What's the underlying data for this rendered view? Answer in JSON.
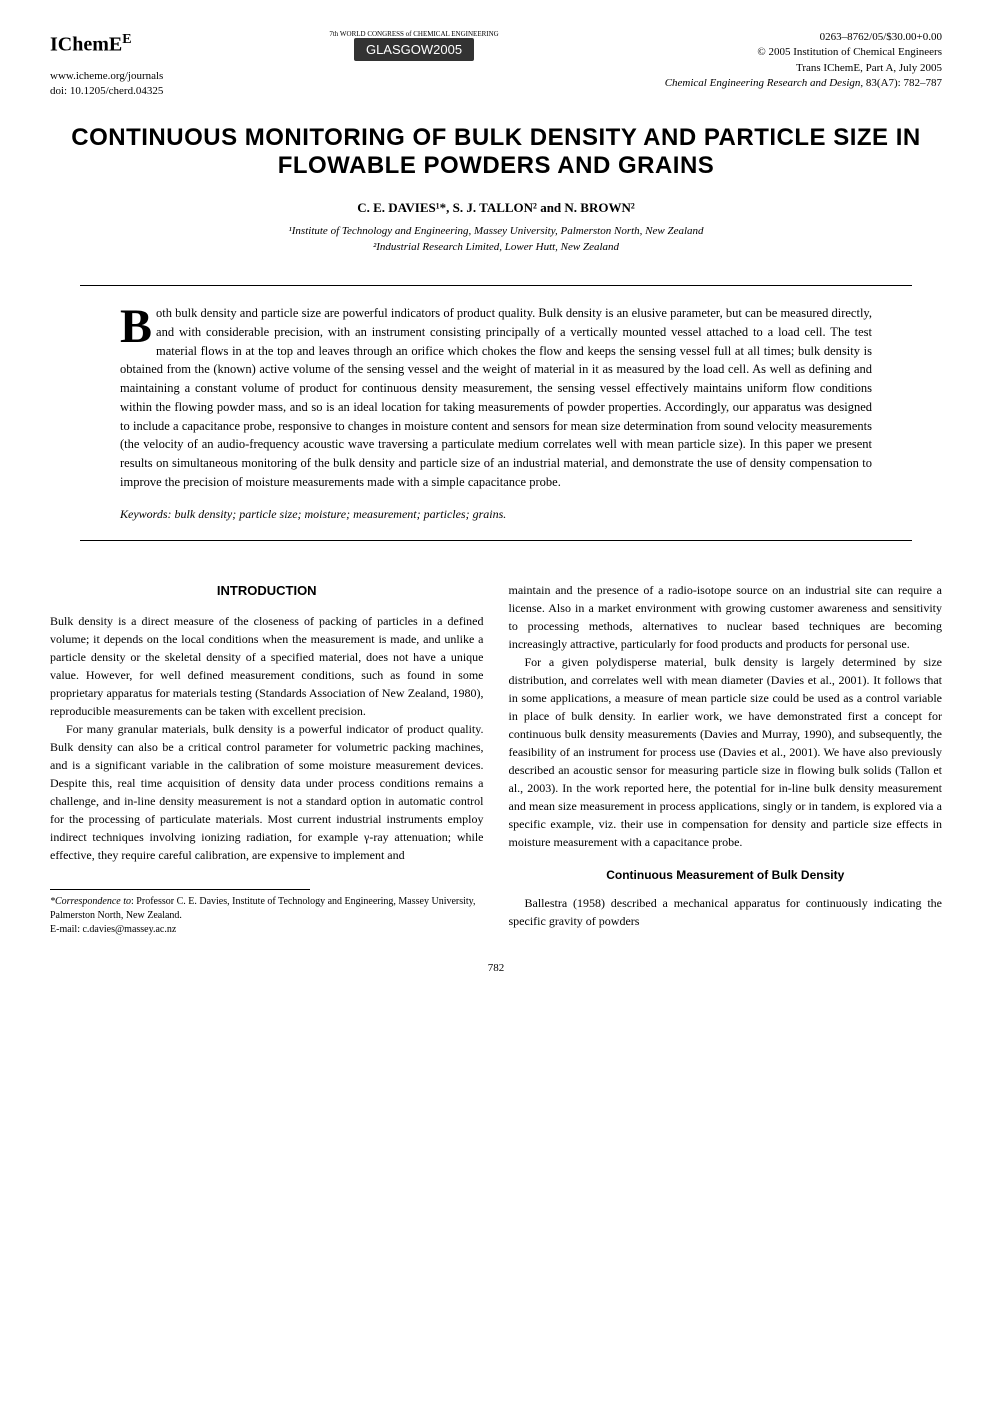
{
  "header": {
    "logo": "IChemE",
    "url": "www.icheme.org/journals",
    "doi": "doi: 10.1205/cherd.04325",
    "conference_logo_top": "7th WORLD CONGRESS of CHEMICAL ENGINEERING",
    "conference_logo_main": "GLASGOW2005",
    "issn": "0263–8762/05/$30.00+0.00",
    "copyright": "© 2005 Institution of Chemical Engineers",
    "trans": "Trans IChemE, Part A, July 2005",
    "journal": "Chemical Engineering Research and Design",
    "citation": ", 83(A7): 782–787"
  },
  "title": "CONTINUOUS MONITORING OF BULK DENSITY AND PARTICLE SIZE IN FLOWABLE POWDERS AND GRAINS",
  "authors": "C. E. DAVIES¹*, S. J. TALLON² and N. BROWN²",
  "affiliations": {
    "line1": "¹Institute of Technology and Engineering, Massey University, Palmerston North, New Zealand",
    "line2": "²Industrial Research Limited, Lower Hutt, New Zealand"
  },
  "abstract": {
    "dropcap": "B",
    "text": "oth bulk density and particle size are powerful indicators of product quality. Bulk density is an elusive parameter, but can be measured directly, and with considerable precision, with an instrument consisting principally of a vertically mounted vessel attached to a load cell. The test material flows in at the top and leaves through an orifice which chokes the flow and keeps the sensing vessel full at all times; bulk density is obtained from the (known) active volume of the sensing vessel and the weight of material in it as measured by the load cell. As well as defining and maintaining a constant volume of product for continuous density measurement, the sensing vessel effectively maintains uniform flow conditions within the flowing powder mass, and so is an ideal location for taking measurements of powder properties. Accordingly, our apparatus was designed to include a capacitance probe, responsive to changes in moisture content and sensors for mean size determination from sound velocity measurements (the velocity of an audio-frequency acoustic wave traversing a particulate medium correlates well with mean particle size). In this paper we present results on simultaneous monitoring of the bulk density and particle size of an industrial material, and demonstrate the use of density compensation to improve the precision of moisture measurements made with a simple capacitance probe."
  },
  "keywords": "Keywords: bulk density; particle size; moisture; measurement; particles; grains.",
  "sections": {
    "intro_heading": "INTRODUCTION",
    "left_para1": "Bulk density is a direct measure of the closeness of packing of particles in a defined volume; it depends on the local conditions when the measurement is made, and unlike a particle density or the skeletal density of a specified material, does not have a unique value. However, for well defined measurement conditions, such as found in some proprietary apparatus for materials testing (Standards Association of New Zealand, 1980), reproducible measurements can be taken with excellent precision.",
    "left_para2": "For many granular materials, bulk density is a powerful indicator of product quality. Bulk density can also be a critical control parameter for volumetric packing machines, and is a significant variable in the calibration of some moisture measurement devices. Despite this, real time acquisition of density data under process conditions remains a challenge, and in-line density measurement is not a standard option in automatic control for the processing of particulate materials. Most current industrial instruments employ indirect techniques involving ionizing radiation, for example γ-ray attenuation; while effective, they require careful calibration, are expensive to implement and",
    "right_para1": "maintain and the presence of a radio-isotope source on an industrial site can require a license. Also in a market environment with growing customer awareness and sensitivity to processing methods, alternatives to nuclear based techniques are becoming increasingly attractive, particularly for food products and products for personal use.",
    "right_para2": "For a given polydisperse material, bulk density is largely determined by size distribution, and correlates well with mean diameter (Davies et al., 2001). It follows that in some applications, a measure of mean particle size could be used as a control variable in place of bulk density. In earlier work, we have demonstrated first a concept for continuous bulk density measurements (Davies and Murray, 1990), and subsequently, the feasibility of an instrument for process use (Davies et al., 2001). We have also previously described an acoustic sensor for measuring particle size in flowing bulk solids (Tallon et al., 2003). In the work reported here, the potential for in-line bulk density measurement and mean size measurement in process applications, singly or in tandem, is explored via a specific example, viz. their use in compensation for density and particle size effects in moisture measurement with a capacitance probe.",
    "subsection_heading": "Continuous Measurement of Bulk Density",
    "right_para3": "Ballestra (1958) described a mechanical apparatus for continuously indicating the specific gravity of powders"
  },
  "footnote": {
    "line1": "*Correspondence to: Professor C. E. Davies, Institute of Technology and Engineering, Massey University, Palmerston North, New Zealand.",
    "line2": "E-mail: c.davies@massey.ac.nz"
  },
  "page_number": "782"
}
